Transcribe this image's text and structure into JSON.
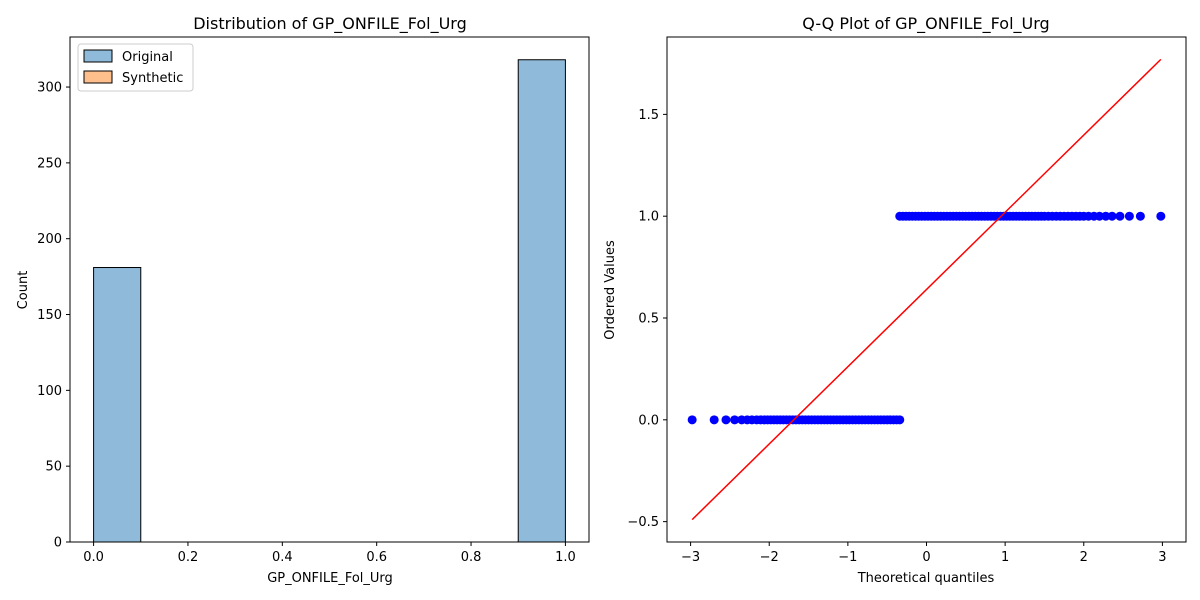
{
  "chart_data": [
    {
      "type": "bar",
      "subtype": "histogram",
      "title": "Distribution of GP_ONFILE_Fol_Urg",
      "xlabel": "GP_ONFILE_Fol_Urg",
      "ylabel": "Count",
      "xlim": [
        -0.05,
        1.05
      ],
      "ylim": [
        0,
        333
      ],
      "xticks": [
        "0.0",
        "0.2",
        "0.4",
        "0.6",
        "0.8",
        "1.0"
      ],
      "xtick_values": [
        0.0,
        0.2,
        0.4,
        0.6,
        0.8,
        1.0
      ],
      "yticks": [
        "0",
        "50",
        "100",
        "150",
        "200",
        "250",
        "300"
      ],
      "ytick_values": [
        0,
        50,
        100,
        150,
        200,
        250,
        300
      ],
      "bin_edges": [
        0.0,
        0.1,
        0.2,
        0.3,
        0.4,
        0.5,
        0.6,
        0.7,
        0.8,
        0.9,
        1.0
      ],
      "series": [
        {
          "name": "Original",
          "color": "#8fbad9",
          "edge": "#000000",
          "values": [
            181,
            0,
            0,
            0,
            0,
            0,
            0,
            0,
            0,
            318
          ]
        },
        {
          "name": "Synthetic",
          "color": "#ffbf8c",
          "edge": "#000000",
          "values": [
            0,
            0,
            0,
            0,
            0,
            0,
            0,
            0,
            0,
            0
          ]
        }
      ],
      "legend": {
        "position": "top-left",
        "entries": [
          "Original",
          "Synthetic"
        ]
      },
      "grid": false
    },
    {
      "type": "scatter",
      "title": "Q-Q Plot of GP_ONFILE_Fol_Urg",
      "xlabel": "Theoretical quantiles",
      "ylabel": "Ordered Values",
      "xlim": [
        -3.3,
        3.3
      ],
      "ylim": [
        -0.6,
        1.88
      ],
      "xticks": [
        "−3",
        "−2",
        "−1",
        "0",
        "1",
        "2",
        "3"
      ],
      "xtick_values": [
        -3,
        -2,
        -1,
        0,
        1,
        2,
        3
      ],
      "yticks": [
        "−0.5",
        "0.0",
        "0.5",
        "1.0",
        "1.5"
      ],
      "ytick_values": [
        -0.5,
        0.0,
        0.5,
        1.0,
        1.5
      ],
      "points_color": "#0000ff",
      "line_color": "#ff0000",
      "series": [
        {
          "y": 0,
          "x": [
            -2.98,
            -2.7,
            -2.55,
            -2.44,
            -2.35,
            -2.28,
            -2.22,
            -2.16,
            -2.11,
            -2.06,
            -2.02,
            -1.98,
            -1.94,
            -1.9,
            -1.86,
            -1.82,
            -1.78,
            -1.74,
            -1.7,
            -1.66,
            -1.62,
            -1.58,
            -1.54,
            -1.5,
            -1.46,
            -1.42,
            -1.38,
            -1.34,
            -1.3,
            -1.26,
            -1.22,
            -1.18,
            -1.14,
            -1.1,
            -1.06,
            -1.02,
            -0.98,
            -0.94,
            -0.9,
            -0.86,
            -0.82,
            -0.78,
            -0.74,
            -0.7,
            -0.66,
            -0.62,
            -0.58,
            -0.54,
            -0.5,
            -0.46,
            -0.42,
            -0.38,
            -0.34
          ]
        },
        {
          "y": 1,
          "x": [
            -0.34,
            -0.3,
            -0.26,
            -0.22,
            -0.18,
            -0.14,
            -0.1,
            -0.06,
            -0.02,
            0.02,
            0.06,
            0.1,
            0.14,
            0.18,
            0.22,
            0.26,
            0.3,
            0.34,
            0.38,
            0.42,
            0.46,
            0.5,
            0.54,
            0.58,
            0.62,
            0.66,
            0.7,
            0.74,
            0.78,
            0.82,
            0.86,
            0.9,
            0.94,
            0.98,
            1.02,
            1.06,
            1.1,
            1.14,
            1.18,
            1.22,
            1.26,
            1.3,
            1.34,
            1.38,
            1.42,
            1.46,
            1.5,
            1.55,
            1.6,
            1.65,
            1.7,
            1.75,
            1.8,
            1.85,
            1.9,
            1.95,
            2.0,
            2.06,
            2.13,
            2.2,
            2.28,
            2.36,
            2.46,
            2.58,
            2.72,
            2.98
          ]
        }
      ],
      "fit_line": {
        "x": [
          -2.98,
          2.98
        ],
        "y": [
          -0.49,
          1.77
        ]
      },
      "grid": false
    }
  ]
}
